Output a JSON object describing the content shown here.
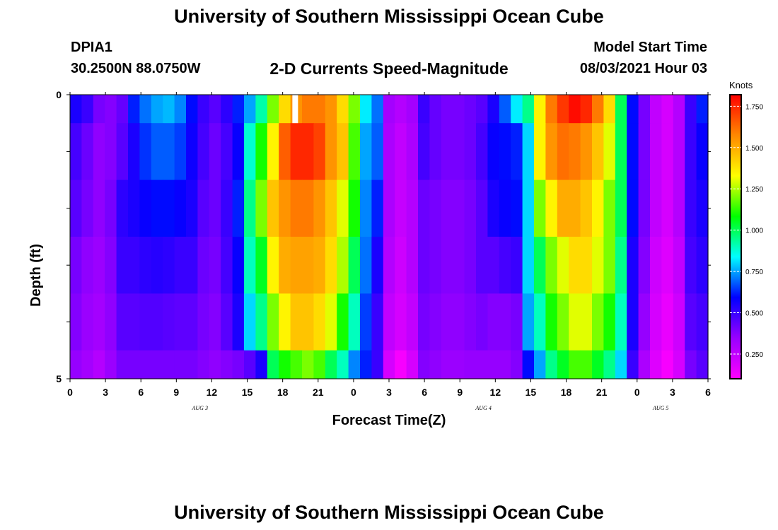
{
  "header": {
    "title": "University of Southern Mississippi Ocean Cube",
    "station": "DPIA1",
    "coords": "30.2500N  88.0750W",
    "subtitle": "2-D Currents Speed-Magnitude",
    "model_start_label": "Model Start Time",
    "model_start_value": "08/03/2021 Hour 03"
  },
  "footer": {
    "title": "University of Southern Mississippi Ocean Cube"
  },
  "chart_data": {
    "type": "heatmap",
    "title": "2-D Currents Speed-Magnitude",
    "xlabel": "Forecast Time(Z)",
    "ylabel": "Depth (ft)",
    "x_tick_labels": [
      "0",
      "3",
      "6",
      "9",
      "12",
      "15",
      "18",
      "21",
      "0",
      "3",
      "6",
      "9",
      "12",
      "15",
      "18",
      "21",
      "0",
      "3",
      "6"
    ],
    "date_labels": [
      {
        "text": "AUG 3",
        "hour": 11
      },
      {
        "text": "AUG 4",
        "hour": 35
      },
      {
        "text": "AUG 5",
        "hour": 50
      }
    ],
    "y_tick_labels": [
      "0",
      "5"
    ],
    "xlim_hours": [
      0,
      54
    ],
    "ylim_ft": [
      0,
      5
    ],
    "colorbar": {
      "unit": "Knots",
      "min": 0.1,
      "max": 1.82,
      "tick_labels": [
        "0.250",
        "0.500",
        "0.750",
        "1.000",
        "1.250",
        "1.500",
        "1.750"
      ],
      "tick_values": [
        0.25,
        0.5,
        0.75,
        1.0,
        1.25,
        1.5,
        1.75
      ],
      "stops": [
        "#ff00ff",
        "#9900ff",
        "#0000ff",
        "#00ffff",
        "#00ff00",
        "#ffff00",
        "#ff8800",
        "#ff0000"
      ]
    },
    "depth_bands_ft": [
      0,
      0.5,
      1.5,
      2.5,
      3.5,
      4.5,
      5
    ],
    "missing_cell": {
      "hour": 19,
      "band": 0
    },
    "values": [
      [
        0.55,
        0.5,
        0.4,
        0.38,
        0.43,
        0.62,
        0.7,
        0.75,
        0.77,
        0.72,
        0.6,
        0.5,
        0.45,
        0.52,
        0.62,
        0.75,
        0.92,
        1.2,
        1.4,
        1.55,
        1.6,
        1.6,
        1.55,
        1.4,
        1.2,
        0.82,
        0.7,
        0.32,
        0.28,
        0.32,
        0.5,
        0.43,
        0.4,
        0.4,
        0.42,
        0.45,
        0.55,
        0.68,
        0.82,
        0.95,
        1.35,
        1.6,
        1.72,
        1.8,
        1.75,
        1.6,
        1.4,
        1.0,
        0.6,
        0.4,
        0.25,
        0.2,
        0.28,
        0.5,
        0.62
      ],
      [
        0.48,
        0.42,
        0.36,
        0.38,
        0.45,
        0.55,
        0.64,
        0.68,
        0.68,
        0.65,
        0.57,
        0.48,
        0.42,
        0.48,
        0.58,
        0.88,
        1.1,
        1.35,
        1.65,
        1.75,
        1.75,
        1.7,
        1.55,
        1.45,
        1.15,
        0.75,
        0.68,
        0.3,
        0.25,
        0.3,
        0.48,
        0.43,
        0.4,
        0.4,
        0.42,
        0.48,
        0.58,
        0.6,
        0.62,
        0.8,
        1.35,
        1.55,
        1.62,
        1.6,
        1.55,
        1.45,
        1.3,
        1.0,
        0.6,
        0.4,
        0.25,
        0.2,
        0.28,
        0.5,
        0.58
      ],
      [
        0.45,
        0.4,
        0.36,
        0.4,
        0.52,
        0.55,
        0.58,
        0.6,
        0.6,
        0.58,
        0.55,
        0.45,
        0.42,
        0.5,
        0.62,
        0.95,
        1.2,
        1.45,
        1.55,
        1.6,
        1.6,
        1.55,
        1.45,
        1.3,
        1.1,
        0.72,
        0.62,
        0.3,
        0.24,
        0.28,
        0.42,
        0.4,
        0.38,
        0.38,
        0.4,
        0.45,
        0.55,
        0.58,
        0.6,
        0.8,
        1.2,
        1.35,
        1.5,
        1.5,
        1.45,
        1.35,
        1.2,
        1.0,
        0.6,
        0.4,
        0.25,
        0.2,
        0.28,
        0.5,
        0.55
      ],
      [
        0.4,
        0.36,
        0.34,
        0.38,
        0.5,
        0.5,
        0.52,
        0.53,
        0.52,
        0.5,
        0.5,
        0.42,
        0.4,
        0.48,
        0.58,
        0.9,
        1.05,
        1.35,
        1.5,
        1.52,
        1.52,
        1.5,
        1.4,
        1.25,
        1.0,
        0.7,
        0.55,
        0.28,
        0.22,
        0.28,
        0.42,
        0.4,
        0.38,
        0.38,
        0.4,
        0.45,
        0.45,
        0.48,
        0.5,
        0.8,
        1.0,
        1.2,
        1.3,
        1.4,
        1.4,
        1.3,
        1.2,
        0.95,
        0.55,
        0.38,
        0.22,
        0.18,
        0.25,
        0.48,
        0.52
      ],
      [
        0.38,
        0.34,
        0.32,
        0.36,
        0.45,
        0.45,
        0.46,
        0.46,
        0.45,
        0.44,
        0.44,
        0.4,
        0.38,
        0.45,
        0.55,
        0.8,
        0.95,
        1.2,
        1.35,
        1.45,
        1.45,
        1.4,
        1.3,
        1.1,
        0.9,
        0.65,
        0.5,
        0.25,
        0.2,
        0.25,
        0.4,
        0.38,
        0.36,
        0.36,
        0.38,
        0.4,
        0.38,
        0.38,
        0.4,
        0.75,
        0.9,
        1.1,
        1.2,
        1.3,
        1.3,
        1.2,
        1.1,
        0.9,
        0.55,
        0.35,
        0.2,
        0.15,
        0.22,
        0.45,
        0.48
      ],
      [
        0.35,
        0.32,
        0.28,
        0.34,
        0.4,
        0.4,
        0.4,
        0.4,
        0.4,
        0.4,
        0.4,
        0.38,
        0.36,
        0.38,
        0.4,
        0.45,
        0.55,
        1.0,
        1.1,
        1.15,
        1.2,
        1.15,
        1.0,
        0.9,
        0.72,
        0.62,
        0.5,
        0.2,
        0.12,
        0.2,
        0.38,
        0.36,
        0.34,
        0.34,
        0.35,
        0.35,
        0.35,
        0.35,
        0.38,
        0.6,
        0.75,
        0.95,
        1.05,
        1.15,
        1.15,
        1.05,
        0.95,
        0.8,
        0.5,
        0.3,
        0.18,
        0.12,
        0.2,
        0.4,
        0.45
      ]
    ]
  }
}
